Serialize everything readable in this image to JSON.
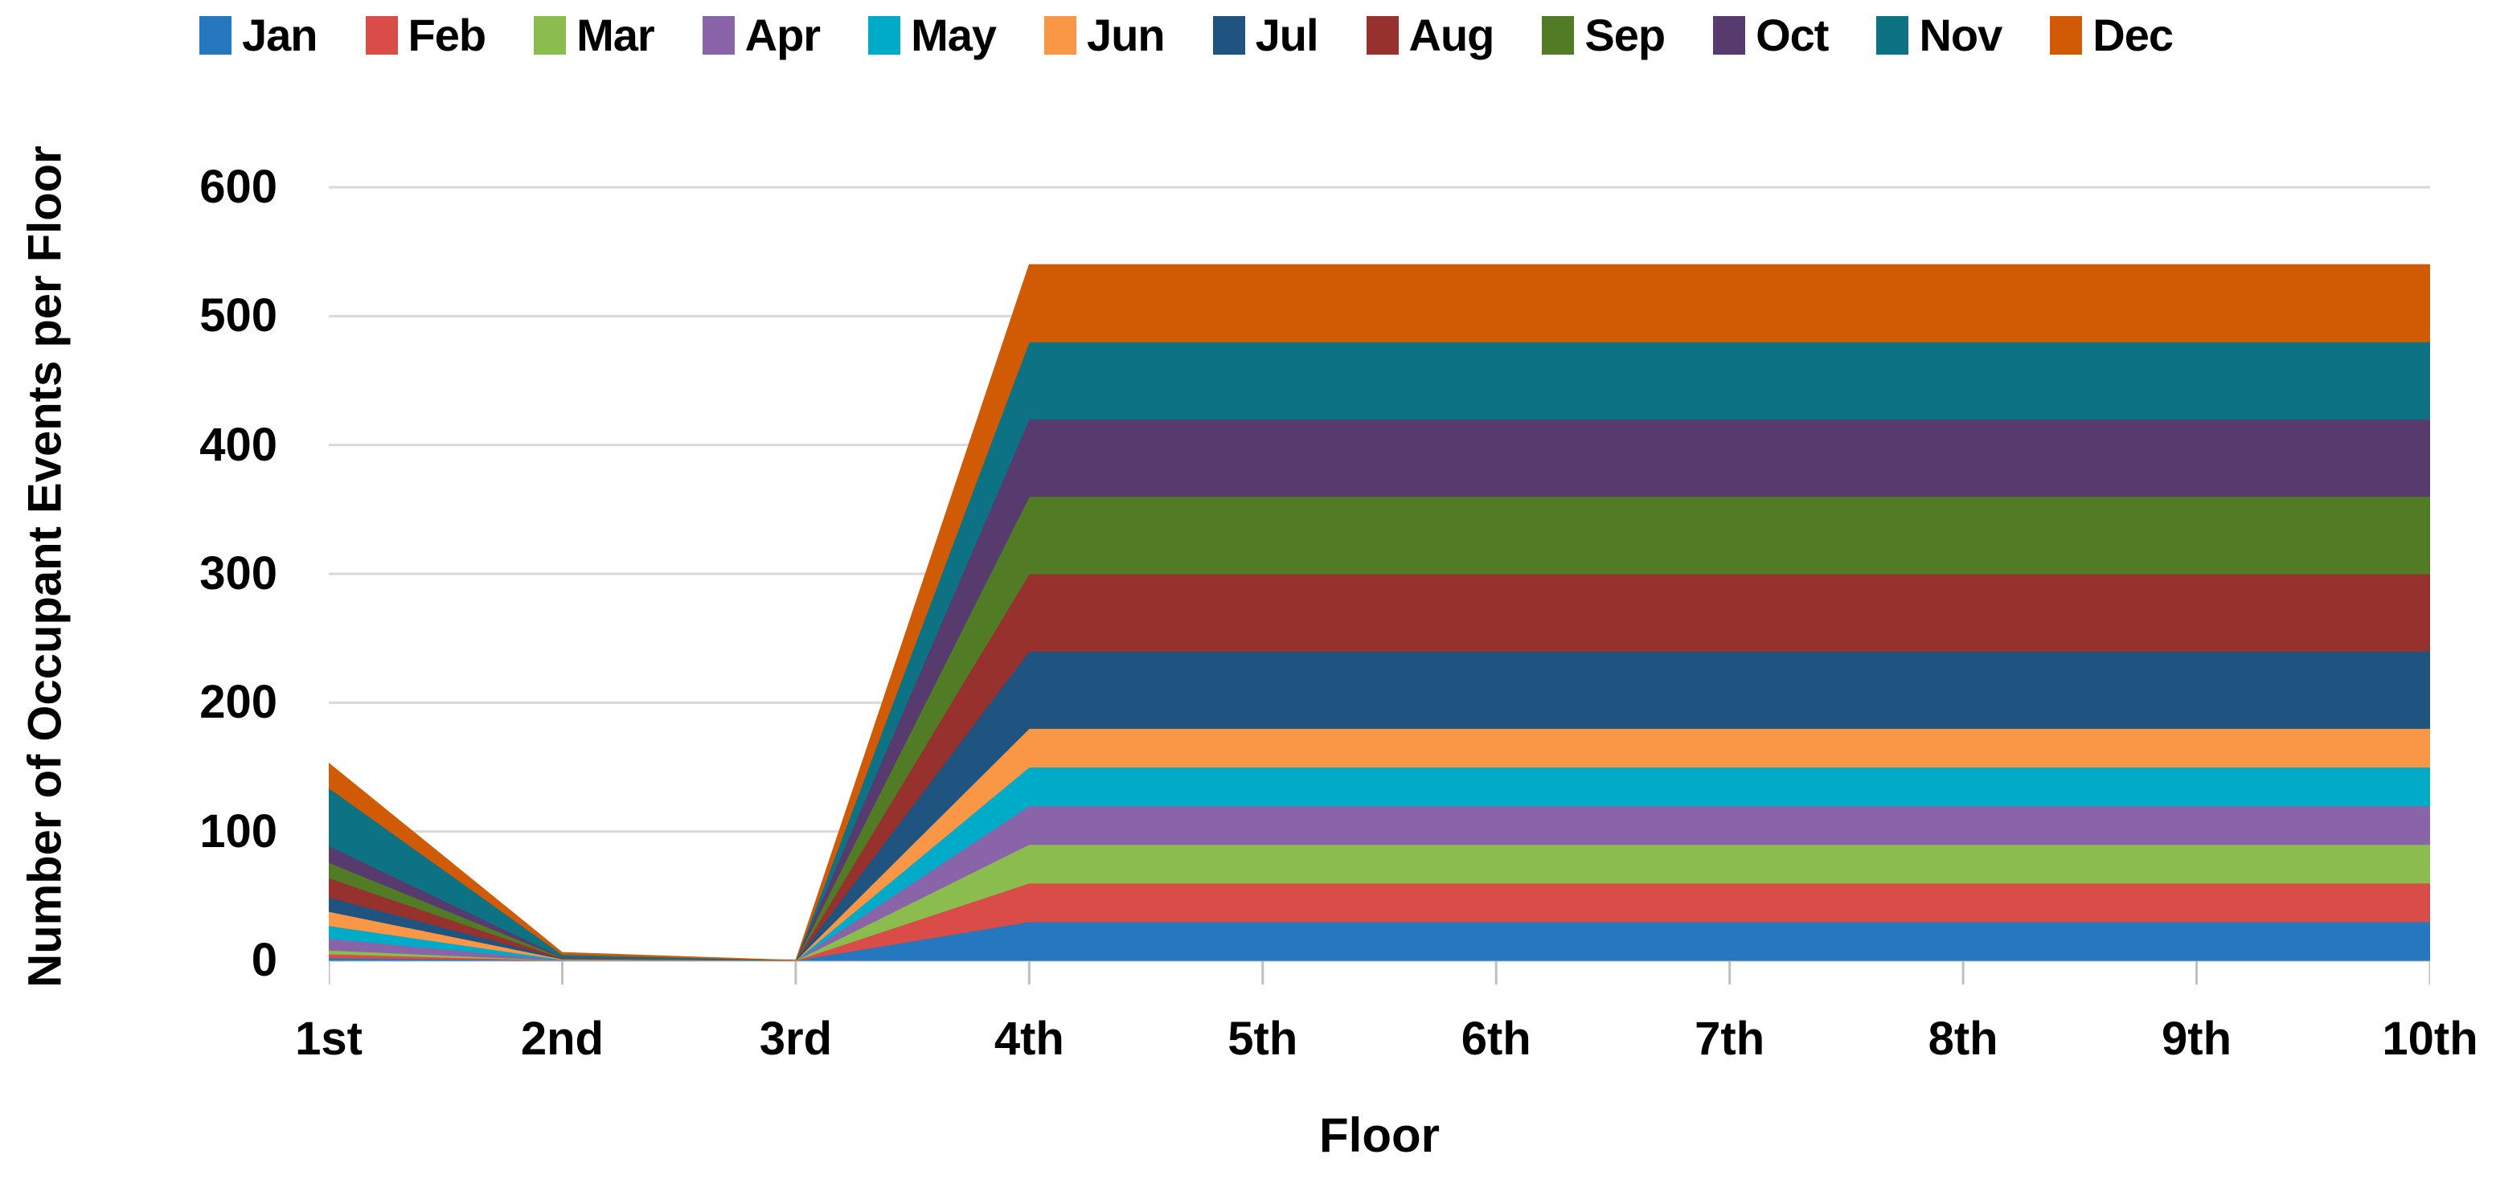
{
  "chart_data": {
    "type": "area",
    "stacked": true,
    "title": "",
    "xlabel": "Floor",
    "ylabel": "Number of Occupant Events per Floor",
    "categories": [
      "1st",
      "2nd",
      "3rd",
      "4th",
      "5th",
      "6th",
      "7th",
      "8th",
      "9th",
      "10th"
    ],
    "series": [
      {
        "name": "Jan",
        "color": "#2578BE",
        "values": [
          2,
          0,
          0,
          30,
          30,
          30,
          30,
          30,
          30,
          30
        ]
      },
      {
        "name": "Feb",
        "color": "#D94C48",
        "values": [
          3,
          0,
          0,
          30,
          30,
          30,
          30,
          30,
          30,
          30
        ]
      },
      {
        "name": "Mar",
        "color": "#8BBC4E",
        "values": [
          3,
          0,
          0,
          30,
          30,
          30,
          30,
          30,
          30,
          30
        ]
      },
      {
        "name": "Apr",
        "color": "#8A64A8",
        "values": [
          9,
          0.3,
          0,
          30,
          30,
          30,
          30,
          30,
          30,
          30
        ]
      },
      {
        "name": "May",
        "color": "#00ABC8",
        "values": [
          10,
          0.3,
          0,
          30,
          30,
          30,
          30,
          30,
          30,
          30
        ]
      },
      {
        "name": "Jun",
        "color": "#F99746",
        "values": [
          11,
          0.5,
          0,
          30,
          30,
          30,
          30,
          30,
          30,
          30
        ]
      },
      {
        "name": "Jul",
        "color": "#1F5380",
        "values": [
          11,
          0.3,
          0,
          60,
          60,
          60,
          60,
          60,
          60,
          60
        ]
      },
      {
        "name": "Aug",
        "color": "#97312E",
        "values": [
          15,
          0.5,
          0,
          60,
          60,
          60,
          60,
          60,
          60,
          60
        ]
      },
      {
        "name": "Sep",
        "color": "#527B26",
        "values": [
          12,
          0.3,
          0,
          60,
          60,
          60,
          60,
          60,
          60,
          60
        ]
      },
      {
        "name": "Oct",
        "color": "#573A6E",
        "values": [
          13,
          0.5,
          0,
          60,
          60,
          60,
          60,
          60,
          60,
          60
        ]
      },
      {
        "name": "Nov",
        "color": "#0E7285",
        "values": [
          45,
          2,
          0,
          60,
          60,
          60,
          60,
          60,
          60,
          60
        ]
      },
      {
        "name": "Dec",
        "color": "#D15B05",
        "values": [
          19,
          1.5,
          0,
          60,
          60,
          60,
          60,
          60,
          60,
          60
        ]
      }
    ],
    "ylim": [
      0,
      600
    ],
    "yticks": [
      0,
      100,
      200,
      300,
      400,
      500,
      600
    ],
    "grid": true,
    "gridline_color": "#D9D9D9",
    "axis_line_color": "#BFBFBF",
    "legend_position": "top"
  }
}
